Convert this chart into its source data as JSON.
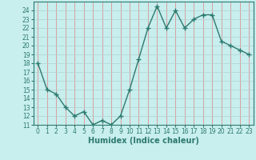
{
  "x": [
    0,
    1,
    2,
    3,
    4,
    5,
    6,
    7,
    8,
    9,
    10,
    11,
    12,
    13,
    14,
    15,
    16,
    17,
    18,
    19,
    20,
    21,
    22,
    23
  ],
  "y": [
    18,
    15,
    14.5,
    13,
    12,
    12.5,
    11,
    11.5,
    11,
    12,
    15,
    18.5,
    22,
    24.5,
    22,
    24,
    22,
    23,
    23.5,
    23.5,
    20.5,
    20,
    19.5,
    19
  ],
  "line_color": "#2d7a6e",
  "marker": "+",
  "marker_size": 4,
  "marker_linewidth": 1.0,
  "bg_color": "#c8eeee",
  "grid_color": "#b0d0d0",
  "grid_color2": "#e08080",
  "xlabel": "Humidex (Indice chaleur)",
  "xlim": [
    -0.5,
    23.5
  ],
  "ylim": [
    11,
    25
  ],
  "yticks": [
    11,
    12,
    13,
    14,
    15,
    16,
    17,
    18,
    19,
    20,
    21,
    22,
    23,
    24
  ],
  "xticks": [
    0,
    1,
    2,
    3,
    4,
    5,
    6,
    7,
    8,
    9,
    10,
    11,
    12,
    13,
    14,
    15,
    16,
    17,
    18,
    19,
    20,
    21,
    22,
    23
  ],
  "tick_label_fontsize": 5.5,
  "xlabel_fontsize": 7
}
